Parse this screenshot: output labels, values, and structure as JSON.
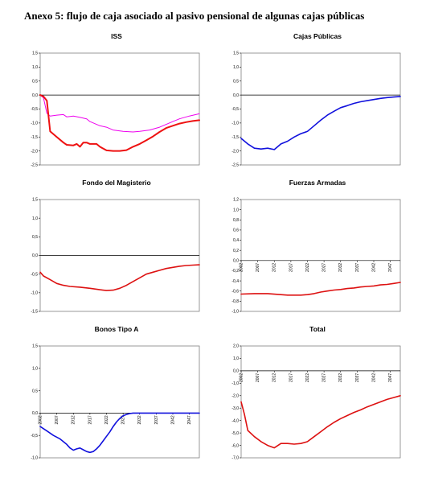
{
  "page": {
    "title": "Anexo 5: flujo de caja asociado al pasivo pensional de algunas cajas públicas"
  },
  "chart_data": [
    {
      "id": "iss",
      "type": "line",
      "title": "ISS",
      "ylim": [
        -2.5,
        1.5
      ],
      "yticks": [
        "1,5",
        "1,0",
        "0,5",
        "0,0",
        "-0,5",
        "-1,0",
        "-1,5",
        "-2,0",
        "-2,5"
      ],
      "xlim": [
        2002,
        2050
      ],
      "xticks": [],
      "xtick_labels": [],
      "series": [
        {
          "color": "#ee00ee",
          "stroke": 1,
          "x": [
            2002,
            2003,
            2004,
            2005,
            2007,
            2009,
            2010,
            2012,
            2014,
            2016,
            2017,
            2019,
            2020,
            2022,
            2024,
            2027,
            2030,
            2032,
            2035,
            2038,
            2040,
            2042,
            2044,
            2047,
            2050
          ],
          "y": [
            0.0,
            -0.1,
            -0.65,
            -0.75,
            -0.72,
            -0.7,
            -0.78,
            -0.75,
            -0.8,
            -0.85,
            -0.95,
            -1.05,
            -1.1,
            -1.15,
            -1.25,
            -1.3,
            -1.32,
            -1.3,
            -1.25,
            -1.15,
            -1.05,
            -0.95,
            -0.85,
            -0.75,
            -0.67
          ]
        },
        {
          "color": "#ee1111",
          "stroke": 2,
          "x": [
            2002,
            2003,
            2004,
            2005,
            2007,
            2009,
            2010,
            2012,
            2013,
            2014,
            2015,
            2016,
            2017,
            2018,
            2019,
            2020,
            2022,
            2024,
            2026,
            2028,
            2030,
            2032,
            2034,
            2036,
            2038,
            2040,
            2042,
            2044,
            2046,
            2048,
            2050
          ],
          "y": [
            0.0,
            -0.05,
            -0.2,
            -1.3,
            -1.5,
            -1.7,
            -1.78,
            -1.8,
            -1.75,
            -1.85,
            -1.7,
            -1.7,
            -1.75,
            -1.75,
            -1.75,
            -1.85,
            -1.98,
            -2.0,
            -2.0,
            -1.97,
            -1.85,
            -1.75,
            -1.62,
            -1.48,
            -1.32,
            -1.18,
            -1.1,
            -1.02,
            -0.97,
            -0.93,
            -0.9
          ]
        }
      ]
    },
    {
      "id": "cajas",
      "type": "line",
      "title": "Cajas Públicas",
      "ylim": [
        -2.5,
        1.5
      ],
      "yticks": [
        "1,5",
        "1,0",
        "0,5",
        "0,0",
        "-0,5",
        "-1,0",
        "-1,5",
        "-2,0",
        "-2,5"
      ],
      "xlim": [
        2002,
        2050
      ],
      "xticks": [],
      "xtick_labels": [],
      "series": [
        {
          "color": "#1111dd",
          "stroke": 1.6,
          "x": [
            2002,
            2004,
            2006,
            2008,
            2010,
            2012,
            2014,
            2016,
            2018,
            2020,
            2022,
            2024,
            2026,
            2028,
            2030,
            2032,
            2034,
            2036,
            2038,
            2040,
            2042,
            2044,
            2046,
            2048,
            2050
          ],
          "y": [
            -1.55,
            -1.75,
            -1.9,
            -1.93,
            -1.9,
            -1.95,
            -1.75,
            -1.65,
            -1.5,
            -1.38,
            -1.3,
            -1.1,
            -0.9,
            -0.72,
            -0.58,
            -0.45,
            -0.38,
            -0.3,
            -0.24,
            -0.2,
            -0.16,
            -0.12,
            -0.09,
            -0.07,
            -0.05
          ]
        }
      ]
    },
    {
      "id": "magisterio",
      "type": "line",
      "title": "Fondo del Magisterio",
      "ylim": [
        -1.5,
        1.5
      ],
      "yticks": [
        "1,5",
        "1,0",
        "0,5",
        "0,0",
        "-0,5",
        "-1,0",
        "-1,5"
      ],
      "xlim": [
        2002,
        2050
      ],
      "xticks": [],
      "xtick_labels": [],
      "series": [
        {
          "color": "#dd1111",
          "stroke": 1.6,
          "x": [
            2002,
            2003,
            2005,
            2007,
            2009,
            2011,
            2014,
            2017,
            2020,
            2022,
            2024,
            2026,
            2028,
            2030,
            2032,
            2034,
            2036,
            2038,
            2040,
            2042,
            2044,
            2046,
            2048,
            2050
          ],
          "y": [
            -0.45,
            -0.55,
            -0.65,
            -0.75,
            -0.8,
            -0.83,
            -0.85,
            -0.88,
            -0.92,
            -0.94,
            -0.93,
            -0.88,
            -0.8,
            -0.7,
            -0.6,
            -0.5,
            -0.45,
            -0.4,
            -0.35,
            -0.32,
            -0.29,
            -0.27,
            -0.26,
            -0.25
          ]
        }
      ]
    },
    {
      "id": "fuerzas",
      "type": "line",
      "title": "Fuerzas Armadas",
      "ylim": [
        -1.0,
        1.2
      ],
      "yticks": [
        "1,2",
        "1,0",
        "0,8",
        "0,6",
        "0,4",
        "0,2",
        "0,0",
        "-0,2",
        "-0,4",
        "-0,6",
        "-0,8",
        "-1,0"
      ],
      "xlim": [
        2002,
        2050
      ],
      "xticks": [
        2002,
        2007,
        2012,
        2017,
        2022,
        2027,
        2032,
        2037,
        2042,
        2047
      ],
      "xtick_labels": [
        "2002",
        "2007",
        "2012",
        "2017",
        "2022",
        "2027",
        "2032",
        "2037",
        "2042",
        "2047"
      ],
      "series": [
        {
          "color": "#dd1111",
          "stroke": 1.6,
          "x": [
            2002,
            2006,
            2010,
            2014,
            2016,
            2018,
            2020,
            2022,
            2024,
            2026,
            2028,
            2030,
            2032,
            2034,
            2036,
            2038,
            2040,
            2042,
            2044,
            2046,
            2048,
            2050
          ],
          "y": [
            -0.66,
            -0.65,
            -0.65,
            -0.67,
            -0.68,
            -0.68,
            -0.68,
            -0.67,
            -0.65,
            -0.62,
            -0.6,
            -0.58,
            -0.57,
            -0.55,
            -0.54,
            -0.52,
            -0.51,
            -0.5,
            -0.48,
            -0.47,
            -0.45,
            -0.43
          ]
        }
      ]
    },
    {
      "id": "bonos",
      "type": "line",
      "title": "Bonos Tipo A",
      "ylim": [
        -1.0,
        1.5
      ],
      "yticks": [
        "1,5",
        "1,0",
        "0,5",
        "0,0",
        "-0,5",
        "-1,0"
      ],
      "xlim": [
        2002,
        2050
      ],
      "xticks": [
        2002,
        2007,
        2012,
        2017,
        2022,
        2027,
        2032,
        2037,
        2042,
        2047
      ],
      "xtick_labels": [
        "2002",
        "2007",
        "2012",
        "2017",
        "2022",
        "2027",
        "2032",
        "2037",
        "2042",
        "2047"
      ],
      "series": [
        {
          "color": "#1111dd",
          "stroke": 1.6,
          "x": [
            2002,
            2004,
            2006,
            2008,
            2010,
            2011,
            2012,
            2013,
            2014,
            2015,
            2016,
            2017,
            2018,
            2019,
            2020,
            2021,
            2022,
            2023,
            2024,
            2025,
            2026,
            2027,
            2028,
            2029,
            2030,
            2031,
            2032,
            2034,
            2038,
            2042,
            2046,
            2050
          ],
          "y": [
            -0.3,
            -0.4,
            -0.5,
            -0.58,
            -0.7,
            -0.78,
            -0.83,
            -0.8,
            -0.78,
            -0.82,
            -0.86,
            -0.88,
            -0.86,
            -0.8,
            -0.72,
            -0.62,
            -0.52,
            -0.42,
            -0.3,
            -0.2,
            -0.12,
            -0.06,
            -0.03,
            -0.01,
            0.0,
            0.0,
            0.0,
            0.0,
            0.0,
            0.0,
            0.0,
            0.0
          ]
        }
      ]
    },
    {
      "id": "total",
      "type": "line",
      "title": "Total",
      "ylim": [
        -7.0,
        2.0
      ],
      "yticks": [
        "2,0",
        "1,0",
        "0,0",
        "-1,0",
        "-2,0",
        "-3,0",
        "-4,0",
        "-5,0",
        "-6,0",
        "-7,0"
      ],
      "xlim": [
        2002,
        2050
      ],
      "xticks": [
        2002,
        2007,
        2012,
        2017,
        2022,
        2027,
        2032,
        2037,
        2042,
        2047
      ],
      "xtick_labels": [
        "2002",
        "2007",
        "2012",
        "2017",
        "2022",
        "2027",
        "2032",
        "2037",
        "2042",
        "2047"
      ],
      "series": [
        {
          "color": "#dd1111",
          "stroke": 1.6,
          "x": [
            2002,
            2003,
            2004,
            2006,
            2008,
            2010,
            2012,
            2014,
            2016,
            2018,
            2020,
            2022,
            2024,
            2026,
            2028,
            2030,
            2032,
            2034,
            2036,
            2038,
            2040,
            2042,
            2044,
            2046,
            2048,
            2050
          ],
          "y": [
            -2.5,
            -3.5,
            -4.8,
            -5.3,
            -5.7,
            -6.0,
            -6.2,
            -5.85,
            -5.85,
            -5.9,
            -5.85,
            -5.7,
            -5.3,
            -4.9,
            -4.5,
            -4.15,
            -3.85,
            -3.6,
            -3.35,
            -3.15,
            -2.9,
            -2.7,
            -2.5,
            -2.3,
            -2.15,
            -2.0
          ]
        }
      ]
    }
  ]
}
